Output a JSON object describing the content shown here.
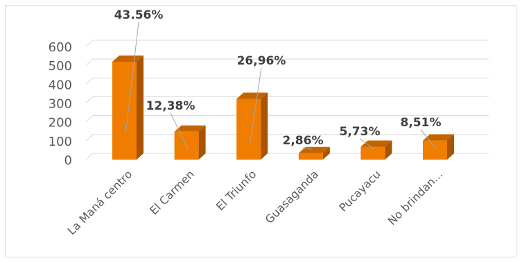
{
  "chart_data": {
    "type": "bar",
    "style": "3d-column",
    "categories": [
      "La Maná centro",
      "El Carmen",
      "El Triunfo",
      "Guasaganda",
      "Pucayacu",
      "No brindan..."
    ],
    "values": [
      519,
      148,
      322,
      34,
      68,
      101
    ],
    "data_labels": [
      "43.56%",
      "12,38%",
      "26,96%",
      "2,86%",
      "5,73%",
      "8,51%"
    ],
    "y_ticks": [
      "0",
      "100",
      "200",
      "300",
      "400",
      "500",
      "600"
    ],
    "ylim": [
      0,
      600
    ],
    "grid": true,
    "legend": "none",
    "colors": {
      "bar_front": "#f07d00",
      "bar_side": "#a85400",
      "bar_top": "#c46400",
      "grid": "#d9d9d9",
      "tick_text": "#595959",
      "label_text": "#404040",
      "leader_line": "#a6a6a6"
    }
  }
}
